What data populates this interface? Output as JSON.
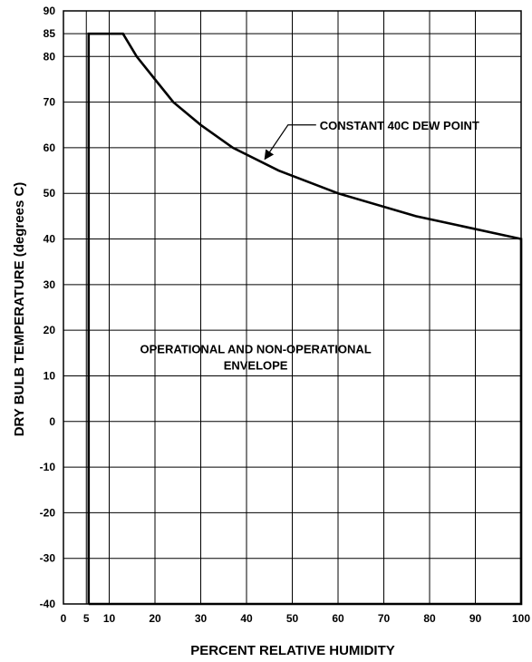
{
  "chart_data": {
    "type": "line",
    "title": "",
    "xlabel": "PERCENT RELATIVE HUMIDITY",
    "ylabel": "DRY BULB TEMPERATURE (degrees C)",
    "xlim": [
      0,
      100
    ],
    "ylim": [
      -40,
      90
    ],
    "x_ticks": [
      {
        "value": 0,
        "label": "0"
      },
      {
        "value": 5,
        "label": "5"
      },
      {
        "value": 10,
        "label": "10"
      },
      {
        "value": 20,
        "label": "20"
      },
      {
        "value": 30,
        "label": "30"
      },
      {
        "value": 40,
        "label": "40"
      },
      {
        "value": 50,
        "label": "50"
      },
      {
        "value": 60,
        "label": "60"
      },
      {
        "value": 70,
        "label": "70"
      },
      {
        "value": 80,
        "label": "80"
      },
      {
        "value": 90,
        "label": "90"
      },
      {
        "value": 100,
        "label": "100"
      }
    ],
    "y_ticks": [
      {
        "value": 90,
        "label": "90"
      },
      {
        "value": 85,
        "label": "85"
      },
      {
        "value": 80,
        "label": "80"
      },
      {
        "value": 70,
        "label": "70"
      },
      {
        "value": 60,
        "label": "60"
      },
      {
        "value": 50,
        "label": "50"
      },
      {
        "value": 40,
        "label": "40"
      },
      {
        "value": 30,
        "label": "30"
      },
      {
        "value": 20,
        "label": "20"
      },
      {
        "value": 10,
        "label": "10"
      },
      {
        "value": 0,
        "label": "0"
      },
      {
        "value": -10,
        "label": "-10"
      },
      {
        "value": -20,
        "label": "-20"
      },
      {
        "value": -30,
        "label": "-30"
      },
      {
        "value": -40,
        "label": "-40"
      }
    ],
    "grid": true,
    "series": [
      {
        "name": "",
        "x": [
          5.5,
          5.5,
          13,
          16,
          20,
          24,
          30,
          37,
          47,
          60,
          77,
          100,
          100,
          5.5
        ],
        "y": [
          -40,
          85,
          85,
          80,
          75,
          70,
          65,
          60,
          55,
          50,
          45,
          40,
          -40,
          -40
        ]
      }
    ],
    "annotations": [
      {
        "text": "CONSTANT 40C DEW POINT",
        "x": 56,
        "y": 65,
        "arrow_to": [
          44,
          57.5
        ]
      },
      {
        "lines": [
          "OPERATIONAL AND NON-OPERATIONAL",
          "ENVELOPE"
        ],
        "x": 42,
        "y": 15
      }
    ]
  }
}
